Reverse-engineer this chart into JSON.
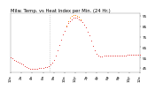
{
  "title": "Milw. Temp. vs Heat Index per Min. (24 Hr.)",
  "background_color": "#ffffff",
  "line_color": "#dd0000",
  "heat_color": "#ff8800",
  "title_fontsize": 3.8,
  "tick_fontsize": 3.0,
  "ylim": [
    41,
    98
  ],
  "xlim": [
    0,
    1440
  ],
  "temp_data": [
    [
      0,
      55
    ],
    [
      20,
      54
    ],
    [
      40,
      53
    ],
    [
      60,
      52
    ],
    [
      80,
      51
    ],
    [
      100,
      50
    ],
    [
      120,
      49
    ],
    [
      140,
      48
    ],
    [
      160,
      47
    ],
    [
      180,
      46
    ],
    [
      200,
      45
    ],
    [
      220,
      44
    ],
    [
      240,
      44
    ],
    [
      260,
      44
    ],
    [
      280,
      44
    ],
    [
      300,
      44
    ],
    [
      320,
      45
    ],
    [
      340,
      45
    ],
    [
      360,
      45
    ],
    [
      380,
      46
    ],
    [
      400,
      46
    ],
    [
      420,
      47
    ],
    [
      440,
      48
    ],
    [
      460,
      50
    ],
    [
      480,
      53
    ],
    [
      500,
      57
    ],
    [
      520,
      62
    ],
    [
      540,
      67
    ],
    [
      560,
      72
    ],
    [
      580,
      77
    ],
    [
      600,
      81
    ],
    [
      620,
      85
    ],
    [
      640,
      88
    ],
    [
      660,
      90
    ],
    [
      680,
      92
    ],
    [
      700,
      93
    ],
    [
      720,
      93
    ],
    [
      740,
      93
    ],
    [
      760,
      92
    ],
    [
      780,
      91
    ],
    [
      800,
      89
    ],
    [
      820,
      87
    ],
    [
      840,
      84
    ],
    [
      860,
      80
    ],
    [
      880,
      76
    ],
    [
      900,
      71
    ],
    [
      920,
      66
    ],
    [
      940,
      62
    ],
    [
      960,
      59
    ],
    [
      980,
      57
    ],
    [
      1000,
      56
    ],
    [
      1020,
      56
    ],
    [
      1040,
      57
    ],
    [
      1060,
      57
    ],
    [
      1080,
      57
    ],
    [
      1100,
      57
    ],
    [
      1120,
      57
    ],
    [
      1140,
      57
    ],
    [
      1160,
      57
    ],
    [
      1180,
      57
    ],
    [
      1200,
      57
    ],
    [
      1220,
      57
    ],
    [
      1240,
      57
    ],
    [
      1260,
      57
    ],
    [
      1280,
      57
    ],
    [
      1300,
      58
    ],
    [
      1320,
      58
    ],
    [
      1340,
      58
    ],
    [
      1360,
      58
    ],
    [
      1380,
      58
    ],
    [
      1400,
      58
    ],
    [
      1420,
      58
    ],
    [
      1440,
      58
    ]
  ],
  "heat_data": [
    [
      620,
      86
    ],
    [
      640,
      90
    ],
    [
      660,
      93
    ],
    [
      680,
      95
    ],
    [
      700,
      96
    ],
    [
      720,
      96
    ],
    [
      740,
      95
    ],
    [
      760,
      94
    ],
    [
      780,
      92
    ]
  ],
  "vline_x": 430,
  "vline_color": "#aaaaaa",
  "xtick_positions": [
    0,
    120,
    240,
    360,
    480,
    600,
    720,
    840,
    960,
    1080,
    1200,
    1320,
    1440
  ],
  "xtick_labels": [
    "12a",
    "2a",
    "4a",
    "6a",
    "8a",
    "10a",
    "12p",
    "2p",
    "4p",
    "6p",
    "8p",
    "10p",
    "12a"
  ],
  "ytick_positions": [
    45,
    55,
    65,
    75,
    85,
    95
  ],
  "ytick_labels": [
    "45",
    "55",
    "65",
    "75",
    "85",
    "95"
  ]
}
